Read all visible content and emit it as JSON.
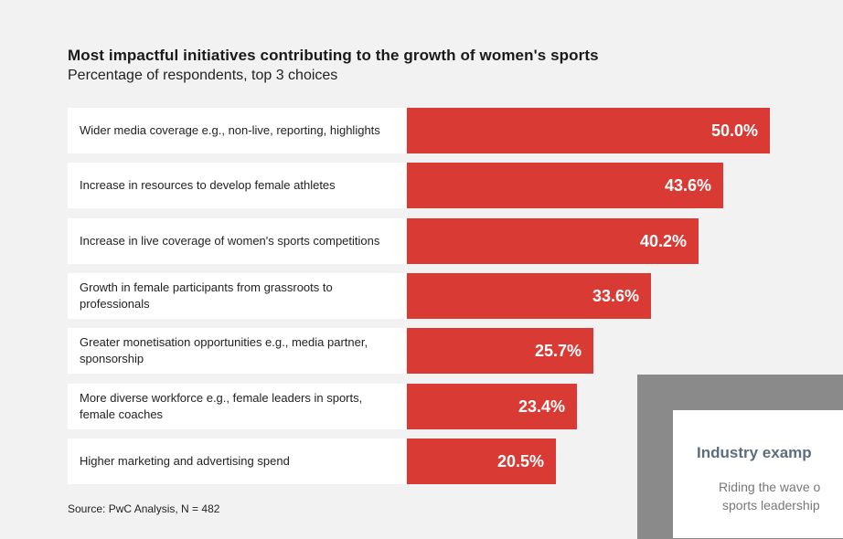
{
  "chart_data": {
    "type": "bar",
    "orientation": "horizontal",
    "title": "Most impactful initiatives contributing to the growth of women's sports",
    "subtitle": "Percentage of respondents, top 3 choices",
    "categories": [
      "Wider media coverage e.g., non-live, reporting, highlights",
      "Increase in resources to develop female athletes",
      "Increase in live coverage of women's sports competitions",
      "Growth in female participants from grassroots to professionals",
      "Greater monetisation opportunities e.g., media partner, sponsorship",
      "More diverse workforce e.g., female leaders in sports, female coaches",
      "Higher marketing and advertising spend"
    ],
    "values": [
      50.0,
      43.6,
      40.2,
      33.6,
      25.7,
      23.4,
      20.5
    ],
    "value_labels": [
      "50.0%",
      "43.6%",
      "40.2%",
      "33.6%",
      "25.7%",
      "23.4%",
      "20.5%"
    ],
    "unit": "%",
    "xlim": [
      0,
      50
    ],
    "bar_color": "#d93a34",
    "source": "Source: PwC Analysis, N = 482"
  },
  "side_panel": {
    "heading": "Industry examp",
    "line1": "Riding the wave o",
    "line2": "sports leadership"
  }
}
